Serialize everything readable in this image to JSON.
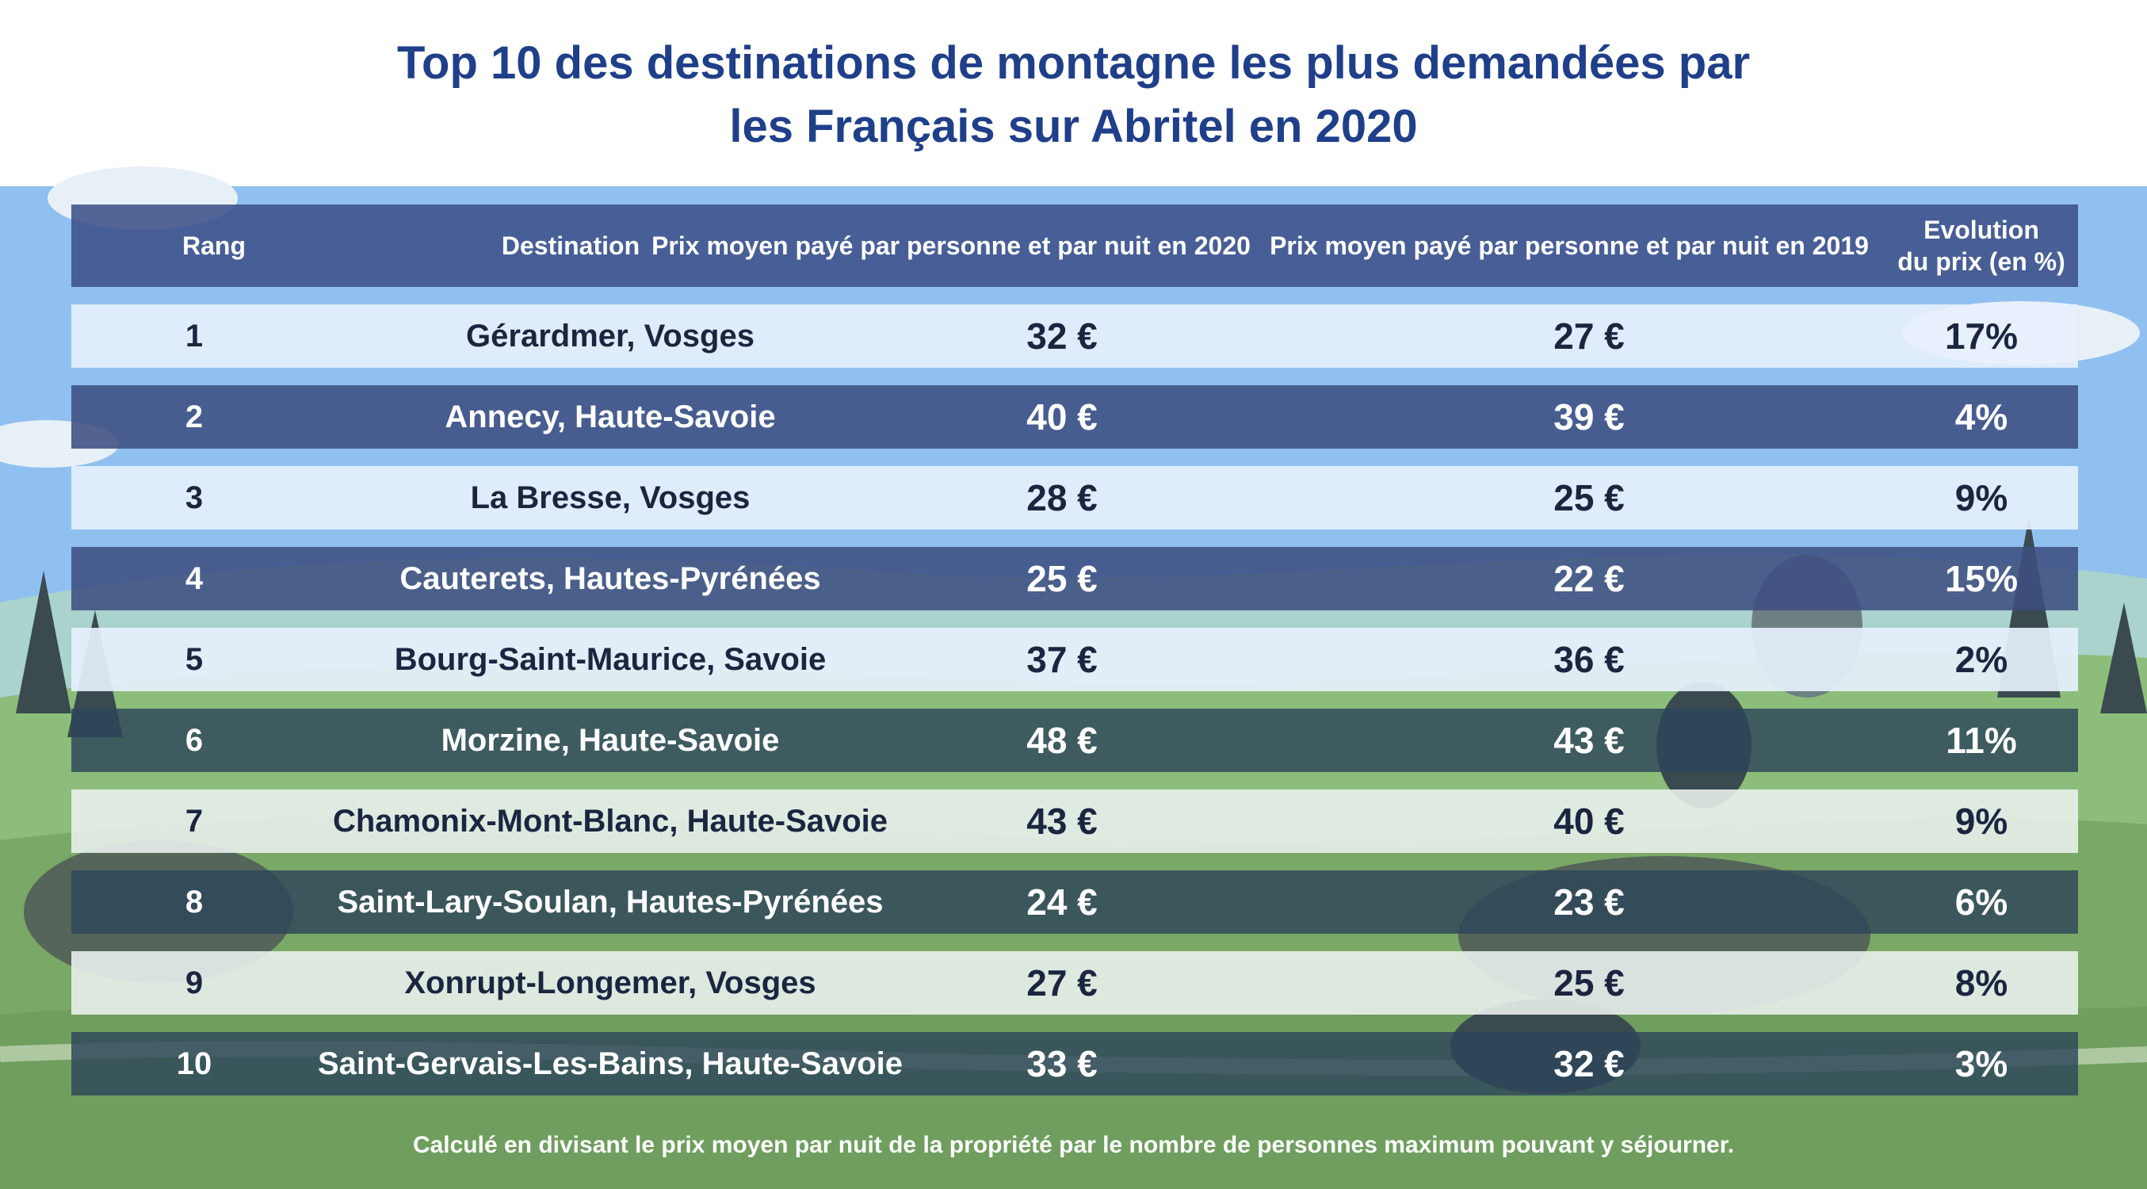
{
  "title": {
    "line1": "Top 10 des destinations de montagne les plus demandées par",
    "line2": "les Français sur Abritel en 2020"
  },
  "table": {
    "headers": {
      "rank": "Rang",
      "destination": "Destination",
      "price_2020": "Prix moyen payé par personne et par nuit en 2020",
      "price_2019": "Prix moyen payé par personne et par nuit en 2019",
      "evolution_line1": "Evolution",
      "evolution_line2": "du prix (en %)"
    },
    "rows": [
      {
        "rank": "1",
        "destination": "Gérardmer, Vosges",
        "price_2020": "32 €",
        "price_2019": "27 €",
        "evolution": "17%"
      },
      {
        "rank": "2",
        "destination": "Annecy, Haute-Savoie",
        "price_2020": "40 €",
        "price_2019": "39 €",
        "evolution": "4%"
      },
      {
        "rank": "3",
        "destination": "La Bresse, Vosges",
        "price_2020": "28 €",
        "price_2019": "25 €",
        "evolution": "9%"
      },
      {
        "rank": "4",
        "destination": "Cauterets, Hautes-Pyrénées",
        "price_2020": "25 €",
        "price_2019": "22 €",
        "evolution": "15%"
      },
      {
        "rank": "5",
        "destination": "Bourg-Saint-Maurice, Savoie",
        "price_2020": "37 €",
        "price_2019": "36 €",
        "evolution": "2%"
      },
      {
        "rank": "6",
        "destination": "Morzine, Haute-Savoie",
        "price_2020": "48 €",
        "price_2019": "43 €",
        "evolution": "11%"
      },
      {
        "rank": "7",
        "destination": "Chamonix-Mont-Blanc, Haute-Savoie",
        "price_2020": "43 €",
        "price_2019": "40 €",
        "evolution": "9%"
      },
      {
        "rank": "8",
        "destination": "Saint-Lary-Soulan, Hautes-Pyrénées",
        "price_2020": "24 €",
        "price_2019": "23 €",
        "evolution": "6%"
      },
      {
        "rank": "9",
        "destination": "Xonrupt-Longemer, Vosges",
        "price_2020": "27 €",
        "price_2019": "25 €",
        "evolution": "8%"
      },
      {
        "rank": "10",
        "destination": "Saint-Gervais-Les-Bains, Haute-Savoie",
        "price_2020": "33 €",
        "price_2019": "32 €",
        "evolution": "3%"
      }
    ]
  },
  "footnote": "Calculé en divisant le prix moyen par nuit de la propriété par le nombre de personnes maximum pouvant y séjourner.",
  "colors": {
    "title": "#1f3f8a",
    "sky": "#8fc0f0",
    "hills": "#7fae6e",
    "header_bg": "#3e508a"
  }
}
